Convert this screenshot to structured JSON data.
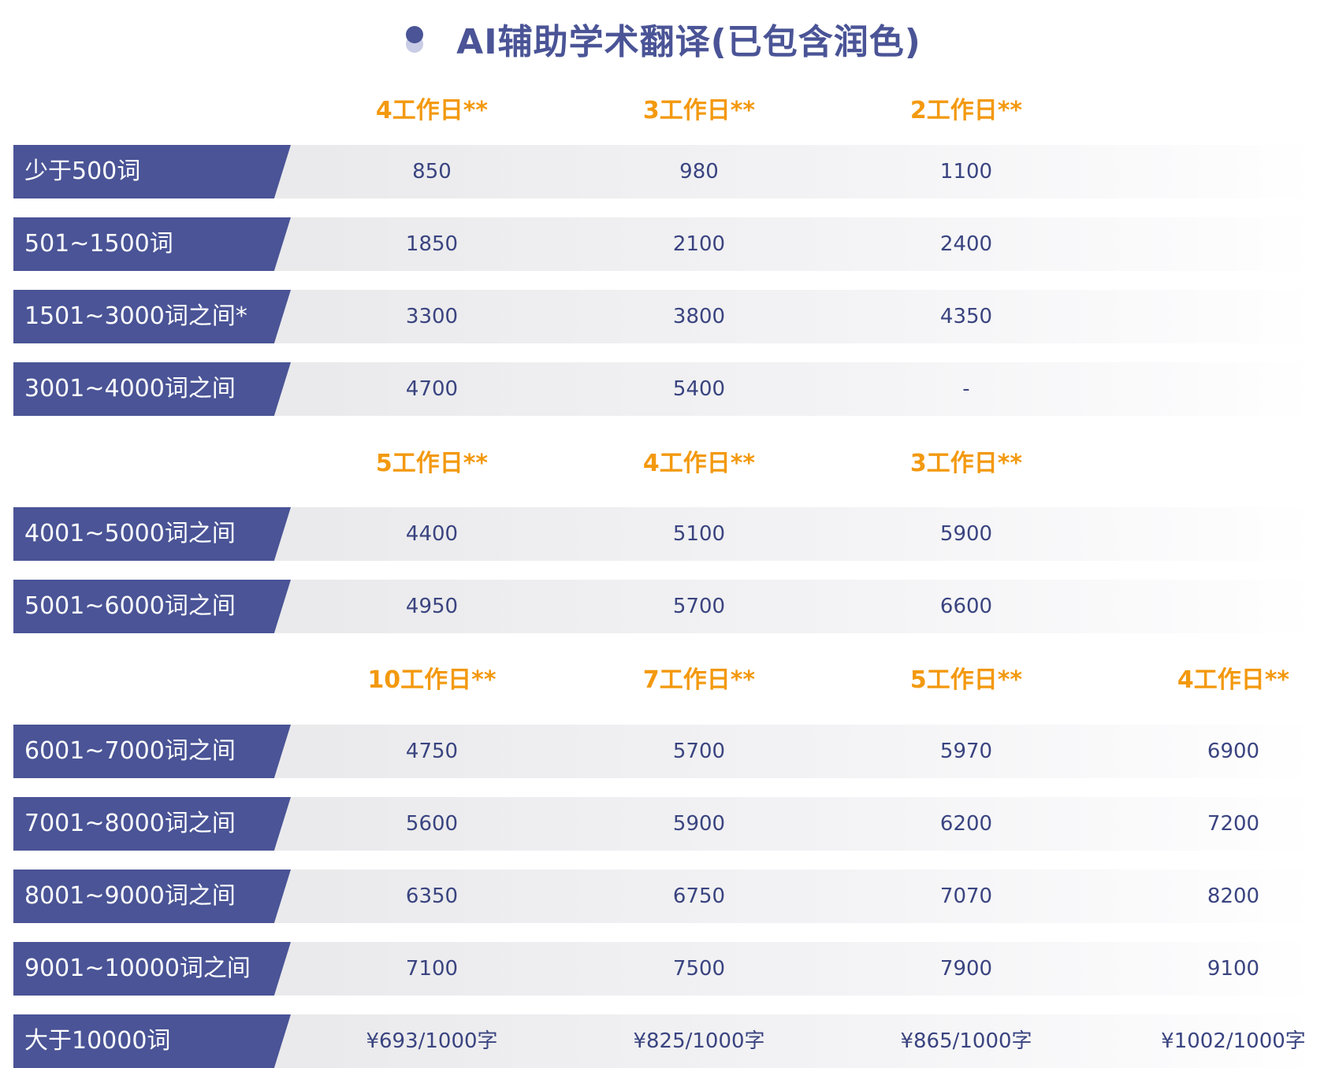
{
  "title": "AI辅助学术翻译(已包含润色)",
  "sections": [
    {
      "headers": [
        "4工作日**",
        "3工作日**",
        "2工作日**"
      ],
      "rows": [
        {
          "label": "少于500词",
          "values": [
            "850",
            "980",
            "1100"
          ]
        },
        {
          "label": "501~1500词",
          "values": [
            "1850",
            "2100",
            "2400"
          ]
        },
        {
          "label": "1501~3000词之间*",
          "values": [
            "3300",
            "3800",
            "4350"
          ]
        },
        {
          "label": "3001~4000词之间",
          "values": [
            "4700",
            "5400",
            "-"
          ]
        }
      ]
    },
    {
      "headers": [
        "5工作日**",
        "4工作日**",
        "3工作日**"
      ],
      "rows": [
        {
          "label": "4001~5000词之间",
          "values": [
            "4400",
            "5100",
            "5900"
          ]
        },
        {
          "label": "5001~6000词之间",
          "values": [
            "4950",
            "5700",
            "6600"
          ]
        }
      ]
    },
    {
      "headers": [
        "10工作日**",
        "7工作日**",
        "5工作日**",
        "4工作日**"
      ],
      "rows": [
        {
          "label": "6001~7000词之间",
          "values": [
            "4750",
            "5700",
            "5970",
            "6900"
          ]
        },
        {
          "label": "7001~8000词之间",
          "values": [
            "5600",
            "5900",
            "6200",
            "7200"
          ]
        },
        {
          "label": "8001~9000词之间",
          "values": [
            "6350",
            "6750",
            "7070",
            "8200"
          ]
        },
        {
          "label": "9001~10000词之间",
          "values": [
            "7100",
            "7500",
            "7900",
            "9100"
          ]
        },
        {
          "label": "大于10000词",
          "values": [
            "¥693/1000字",
            "¥825/1000字",
            "¥865/1000字",
            "¥1002/1000字"
          ]
        }
      ]
    }
  ]
}
